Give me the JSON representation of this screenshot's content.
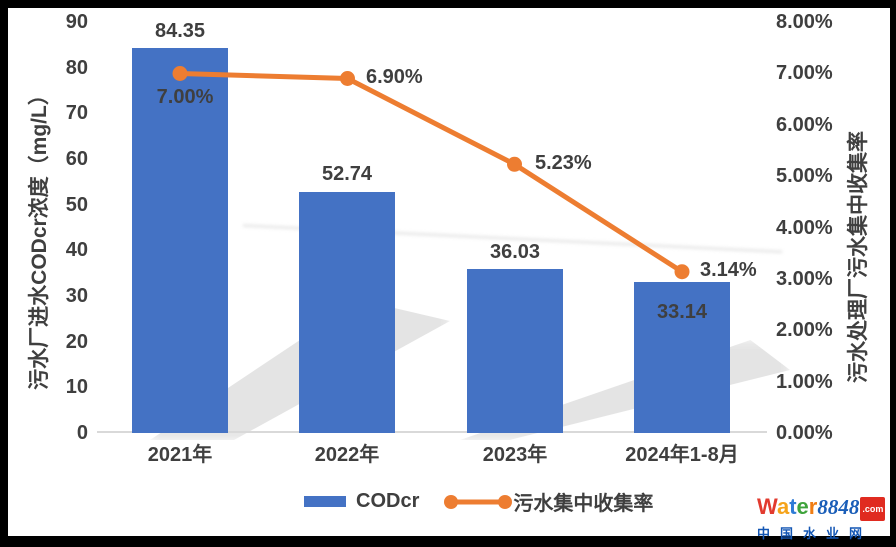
{
  "chart_data": {
    "type": "combo",
    "categories": [
      "2021年",
      "2022年",
      "2023年",
      "2024年1-8月"
    ],
    "series": [
      {
        "name": "CODcr",
        "type": "bar",
        "axis": "left",
        "values": [
          84.35,
          52.74,
          36.03,
          33.14
        ],
        "labels": [
          "84.35",
          "52.74",
          "36.03",
          "33.14"
        ]
      },
      {
        "name": "污水集中收集率",
        "type": "line",
        "axis": "right",
        "values": [
          0.07,
          0.069,
          0.0523,
          0.0314
        ],
        "labels": [
          "7.00%",
          "6.90%",
          "5.23%",
          "3.14%"
        ]
      }
    ],
    "left_axis": {
      "title": "污水厂进水CODcr浓度（mg/L）",
      "range": [
        0,
        90
      ],
      "ticks": [
        "90",
        "80",
        "70",
        "60",
        "50",
        "40",
        "30",
        "20",
        "10",
        "0"
      ]
    },
    "right_axis": {
      "title": "污水处理厂污水集中收集率",
      "range_labels": [
        "0.00%",
        "8.00%"
      ],
      "ticks": [
        "8.00%",
        "7.00%",
        "6.00%",
        "5.00%",
        "4.00%",
        "3.00%",
        "2.00%",
        "1.00%",
        "0.00%"
      ]
    },
    "legend": {
      "position": "bottom",
      "items": [
        "CODcr",
        "污水集中收集率"
      ]
    },
    "grid": "off"
  },
  "colors": {
    "bar": "#4472C4",
    "line": "#ED7D31",
    "text": "#3F3F3F",
    "axis_line": "#D9D9D9",
    "frame": "#000000"
  },
  "watermark": {
    "brand_letters": [
      {
        "ch": "W",
        "color": "#E23A2E"
      },
      {
        "ch": "a",
        "color": "#F5A31A"
      },
      {
        "ch": "t",
        "color": "#2E7BD6"
      },
      {
        "ch": "e",
        "color": "#3FA33C"
      },
      {
        "ch": "r",
        "color": "#F07D14"
      }
    ],
    "brand_number": "8848",
    "domain": ".com",
    "subtitle": "中国水业网"
  }
}
